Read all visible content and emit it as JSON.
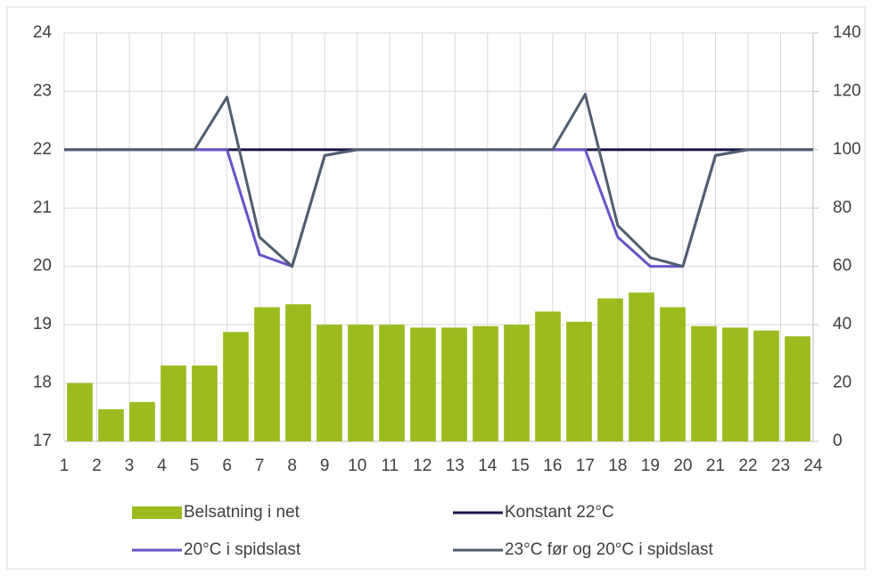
{
  "chart_data": {
    "type": "combo",
    "x": [
      1,
      2,
      3,
      4,
      5,
      6,
      7,
      8,
      9,
      10,
      11,
      12,
      13,
      14,
      15,
      16,
      17,
      18,
      19,
      20,
      21,
      22,
      23,
      24
    ],
    "xlim": [
      1,
      24
    ],
    "xticks": [
      1,
      2,
      3,
      4,
      5,
      6,
      7,
      8,
      9,
      10,
      11,
      12,
      13,
      14,
      15,
      16,
      17,
      18,
      19,
      20,
      21,
      22,
      23,
      24
    ],
    "ylim": [
      17,
      24
    ],
    "yticks": [
      17,
      18,
      19,
      20,
      21,
      22,
      23,
      24
    ],
    "y2lim": [
      0,
      140
    ],
    "y2ticks": [
      0,
      20,
      40,
      60,
      80,
      100,
      120,
      140
    ],
    "grid": true,
    "legend": "bottom",
    "series": [
      {
        "name": "Belsatning i net",
        "kind": "bar",
        "axis": "y2",
        "color": "#9bbb1f",
        "values": [
          20,
          11,
          13.5,
          26,
          26,
          37.5,
          46,
          47,
          40,
          40,
          40,
          39,
          39,
          39.5,
          40,
          44.5,
          41,
          49,
          51,
          46,
          39.5,
          39,
          38,
          36
        ]
      },
      {
        "name": "Konstant 22°C",
        "kind": "line",
        "color": "#1a1446",
        "values": [
          22,
          22,
          22,
          22,
          22,
          22,
          22,
          22,
          22,
          22,
          22,
          22,
          22,
          22,
          22,
          22,
          22,
          22,
          22,
          22,
          22,
          22,
          22,
          22
        ]
      },
      {
        "name": "20°C i spidslast",
        "kind": "line",
        "color": "#6a52c8",
        "values": [
          22,
          22,
          22,
          22,
          22,
          22,
          20.2,
          20,
          21.9,
          22,
          22,
          22,
          22,
          22,
          22,
          22,
          22,
          20.5,
          20,
          20,
          21.9,
          22,
          22,
          22
        ]
      },
      {
        "name": "23°C før og 20°C i spidslast",
        "kind": "line",
        "color": "#4f5e6e",
        "values": [
          22,
          22,
          22,
          22,
          22,
          22.9,
          20.5,
          20,
          21.9,
          22,
          22,
          22,
          22,
          22,
          22,
          22,
          22.95,
          20.7,
          20.15,
          20,
          21.9,
          22,
          22,
          22
        ]
      }
    ]
  }
}
